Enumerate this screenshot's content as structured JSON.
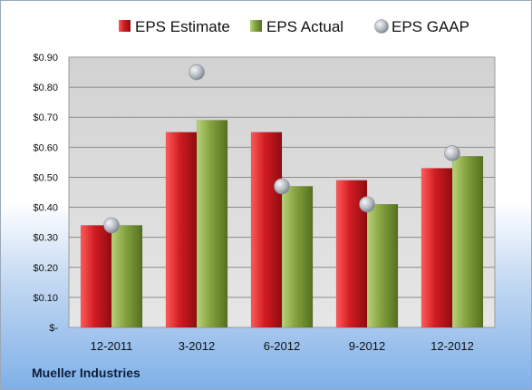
{
  "chart_data": {
    "type": "bar",
    "title": "",
    "xlabel": "",
    "ylabel": "",
    "categories": [
      "12-2011",
      "3-2012",
      "6-2012",
      "9-2012",
      "12-2012"
    ],
    "series": [
      {
        "name": "EPS Estimate",
        "kind": "bar",
        "color": "#c8191e",
        "values": [
          0.34,
          0.65,
          0.65,
          0.49,
          0.53
        ]
      },
      {
        "name": "EPS Actual",
        "kind": "bar",
        "color": "#7c9a3a",
        "values": [
          0.34,
          0.69,
          0.47,
          0.41,
          0.57
        ]
      },
      {
        "name": "EPS GAAP",
        "kind": "scatter",
        "color": "#b8bec6",
        "values": [
          0.34,
          0.85,
          0.47,
          0.41,
          0.58
        ]
      }
    ],
    "ylim": [
      0,
      0.9
    ],
    "yticks": [
      "$-",
      "$0.10",
      "$0.20",
      "$0.30",
      "$0.40",
      "$0.50",
      "$0.60",
      "$0.70",
      "$0.80",
      "$0.90"
    ],
    "grid": true,
    "legend_position": "top"
  },
  "footer": {
    "company": "Mueller Industries"
  }
}
